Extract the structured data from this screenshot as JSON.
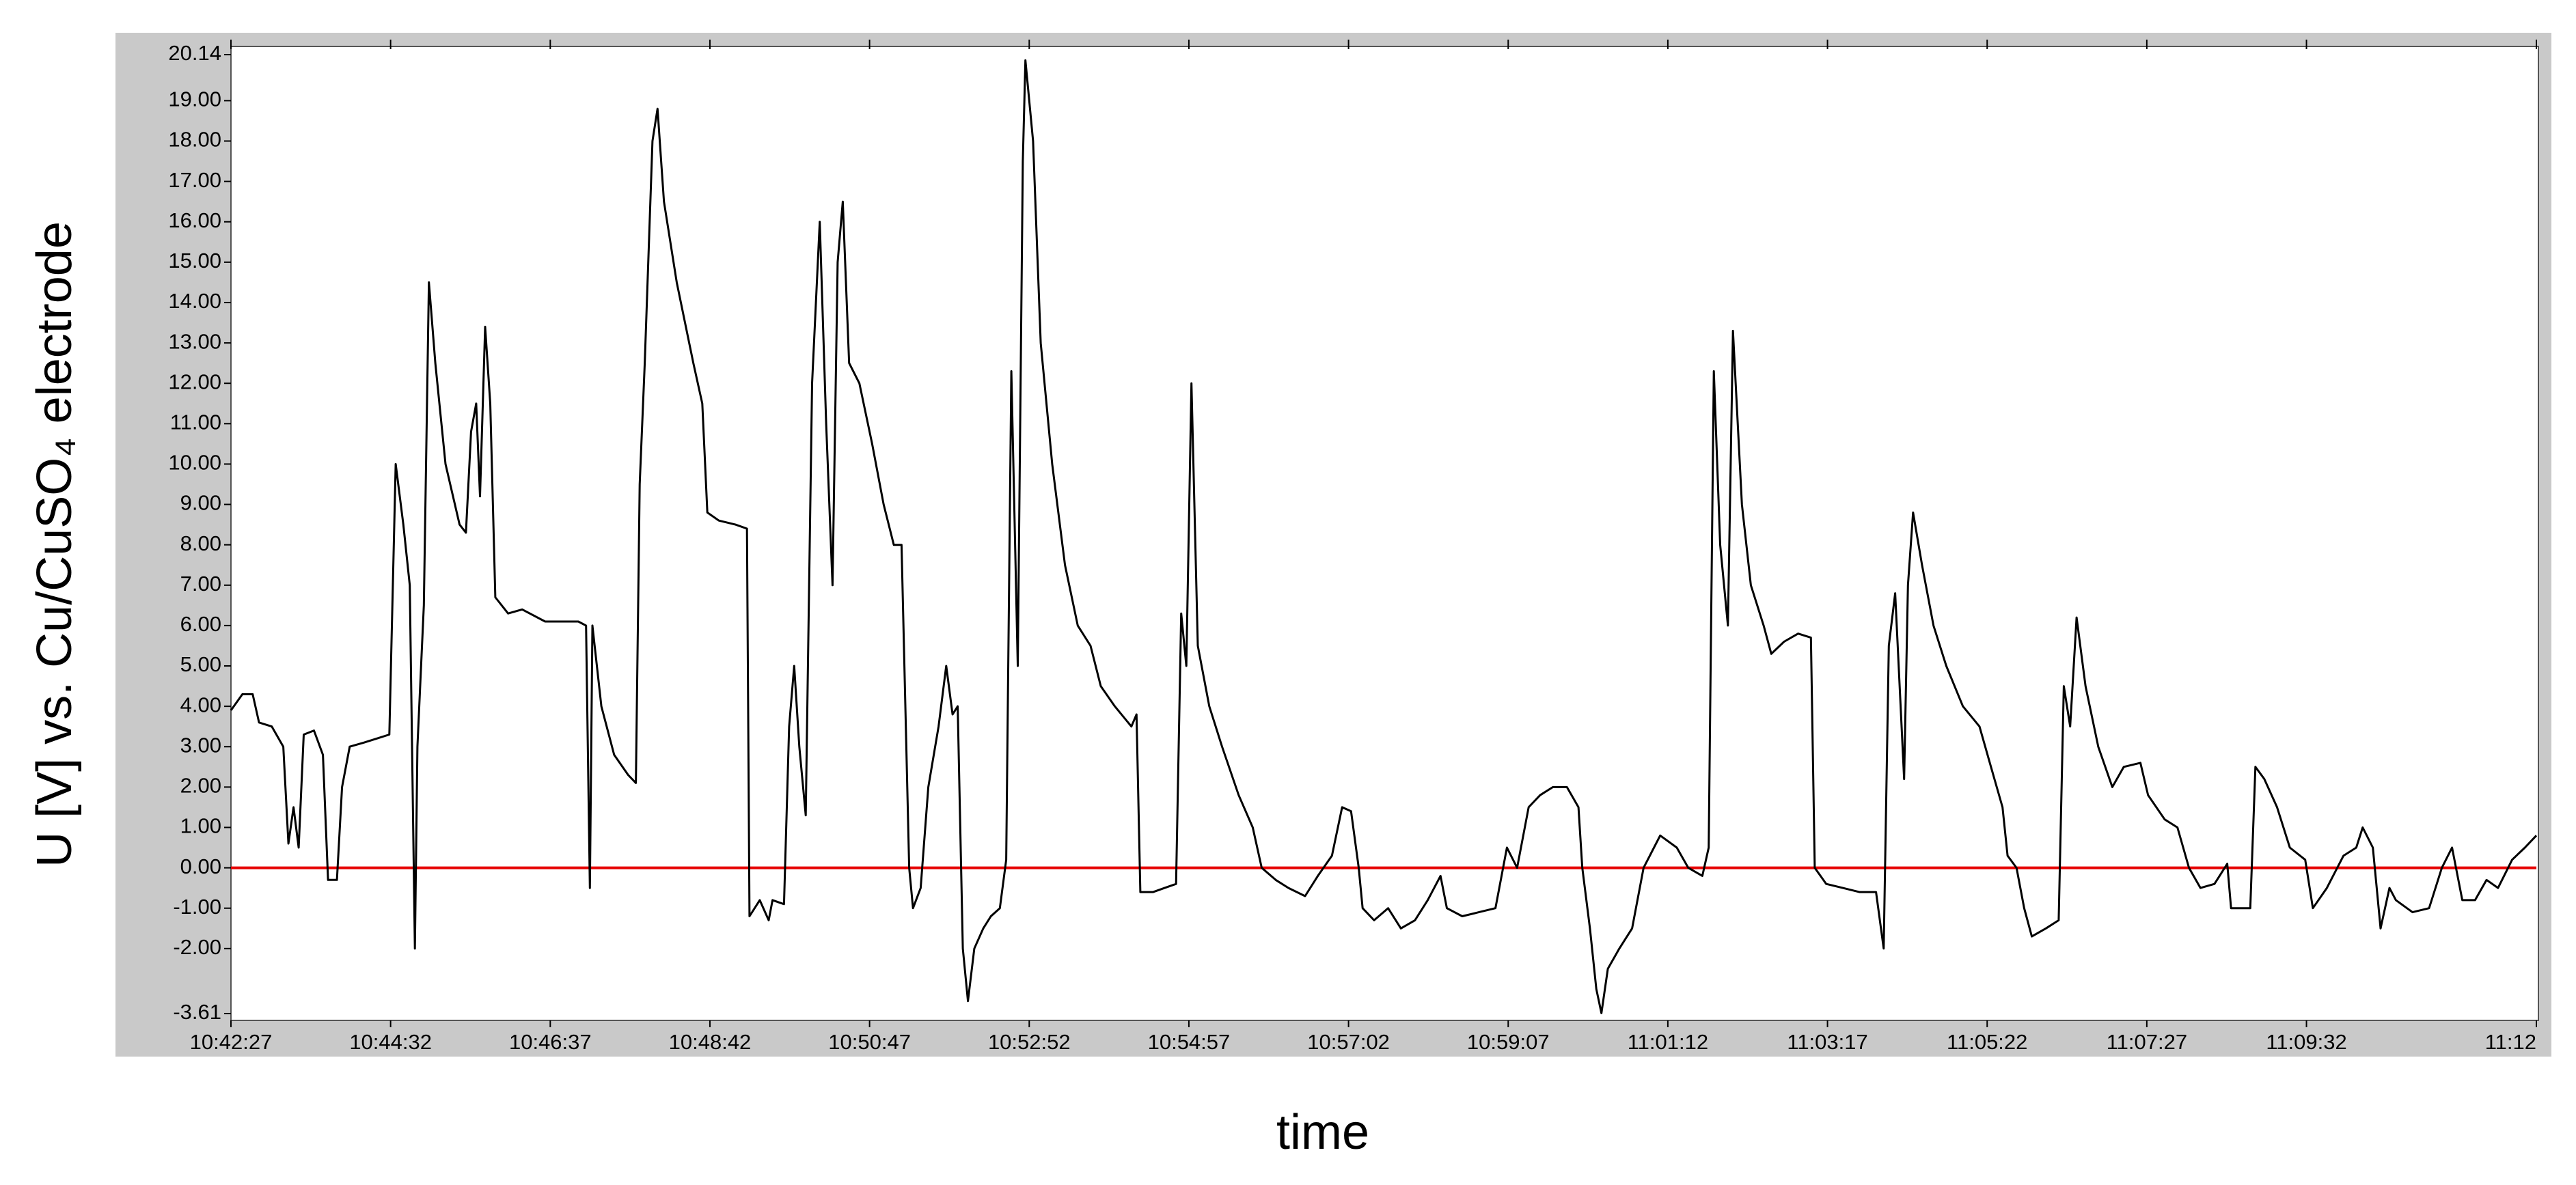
{
  "chart_data": {
    "type": "line",
    "y_label": "U [V] vs. Cu/CuSO₄ electrode",
    "x_label": "time",
    "xlim": [
      "10:42:27",
      "11:12:32"
    ],
    "xticks": [
      "10:42:27",
      "10:44:32",
      "10:46:37",
      "10:48:42",
      "10:50:47",
      "10:52:52",
      "10:54:57",
      "10:57:02",
      "10:59:07",
      "11:01:12",
      "11:03:17",
      "11:05:22",
      "11:07:27",
      "11:09:32",
      {
        "value": "11:12:32",
        "label": "11:12"
      }
    ],
    "ylim": [
      -3.61,
      20.14
    ],
    "yticks": [
      20.14,
      {
        "value": 19,
        "label": "19.00"
      },
      {
        "value": 18,
        "label": "18.00"
      },
      {
        "value": 17,
        "label": "17.00"
      },
      {
        "value": 16,
        "label": "16.00"
      },
      {
        "value": 15,
        "label": "15.00"
      },
      {
        "value": 14,
        "label": "14.00"
      },
      {
        "value": 13,
        "label": "13.00"
      },
      {
        "value": 12,
        "label": "12.00"
      },
      {
        "value": 11,
        "label": "11.00"
      },
      {
        "value": 10,
        "label": "10.00"
      },
      {
        "value": 9,
        "label": "9.00"
      },
      {
        "value": 8,
        "label": "8.00"
      },
      {
        "value": 7,
        "label": "7.00"
      },
      {
        "value": 6,
        "label": "6.00"
      },
      {
        "value": 5,
        "label": "5.00"
      },
      {
        "value": 4,
        "label": "4.00"
      },
      {
        "value": 3,
        "label": "3.00"
      },
      {
        "value": 2,
        "label": "2.00"
      },
      {
        "value": 1,
        "label": "1.00"
      },
      {
        "value": 0,
        "label": "0.00"
      },
      {
        "value": -1,
        "label": "-1.00"
      },
      {
        "value": -2,
        "label": "-2.00"
      },
      -3.61
    ],
    "reference_line": {
      "value": 0,
      "color": "#e60000"
    },
    "x": [
      "10:42:27",
      "10:42:36",
      "10:42:44",
      "10:42:49",
      "10:42:59",
      "10:43:08",
      "10:43:12",
      "10:43:16",
      "10:43:20",
      "10:43:24",
      "10:43:32",
      "10:43:39",
      "10:43:43",
      "10:43:50",
      "10:43:54",
      "10:44:00",
      "10:44:11",
      "10:44:21",
      "10:44:31",
      "10:44:36",
      "10:44:42",
      "10:44:47",
      "10:44:51",
      "10:44:53",
      "10:44:58",
      "10:45:02",
      "10:45:07",
      "10:45:15",
      "10:45:26",
      "10:45:31",
      "10:45:35",
      "10:45:39",
      "10:45:42",
      "10:45:46",
      "10:45:50",
      "10:45:54",
      "10:46:04",
      "10:46:15",
      "10:46:33",
      "10:46:59",
      "10:47:05",
      "10:47:08",
      "10:47:10",
      "10:47:17",
      "10:47:27",
      "10:47:38",
      "10:47:44",
      "10:47:47",
      "10:47:51",
      "10:47:57",
      "10:48:01",
      "10:48:06",
      "10:48:16",
      "10:48:29",
      "10:48:36",
      "10:48:40",
      "10:48:49",
      "10:49:02",
      "10:49:11",
      "10:49:13",
      "10:49:21",
      "10:49:28",
      "10:49:31",
      "10:49:40",
      "10:49:44",
      "10:49:48",
      "10:49:52",
      "10:49:57",
      "10:50:02",
      "10:50:08",
      "10:50:13",
      "10:50:18",
      "10:50:22",
      "10:50:26",
      "10:50:31",
      "10:50:39",
      "10:50:49",
      "10:50:58",
      "10:51:06",
      "10:51:12",
      "10:51:18",
      "10:51:21",
      "10:51:27",
      "10:51:33",
      "10:51:41",
      "10:51:47",
      "10:51:52",
      "10:51:56",
      "10:52:00",
      "10:52:04",
      "10:52:09",
      "10:52:16",
      "10:52:22",
      "10:52:29",
      "10:52:34",
      "10:52:38",
      "10:52:43",
      "10:52:47",
      "10:52:49",
      "10:52:55",
      "10:53:01",
      "10:53:10",
      "10:53:20",
      "10:53:30",
      "10:53:40",
      "10:53:48",
      "10:53:59",
      "10:54:12",
      "10:54:16",
      "10:54:19",
      "10:54:29",
      "10:54:38",
      "10:54:47",
      "10:54:51",
      "10:54:55",
      "10:54:59",
      "10:55:04",
      "10:55:13",
      "10:55:23",
      "10:55:36",
      "10:55:47",
      "10:55:54",
      "10:56:05",
      "10:56:15",
      "10:56:28",
      "10:56:38",
      "10:56:49",
      "10:56:57",
      "10:57:04",
      "10:57:10",
      "10:57:13",
      "10:57:22",
      "10:57:33",
      "10:57:43",
      "10:57:54",
      "10:58:04",
      "10:58:14",
      "10:58:19",
      "10:58:31",
      "10:58:44",
      "10:58:57",
      "10:59:06",
      "10:59:14",
      "10:59:23",
      "10:59:32",
      "10:59:42",
      "10:59:53",
      "11:00:02",
      "11:00:05",
      "11:00:11",
      "11:00:16",
      "11:00:20",
      "11:00:25",
      "11:00:34",
      "11:00:44",
      "11:00:53",
      "11:01:06",
      "11:01:19",
      "11:01:28",
      "11:01:39",
      "11:01:44",
      "11:01:48",
      "11:01:53",
      "11:01:59",
      "11:02:03",
      "11:02:10",
      "11:02:17",
      "11:02:27",
      "11:02:33",
      "11:02:43",
      "11:02:54",
      "11:03:04",
      "11:03:07",
      "11:03:16",
      "11:03:29",
      "11:03:42",
      "11:03:55",
      "11:04:01",
      "11:04:05",
      "11:04:10",
      "11:04:17",
      "11:04:20",
      "11:04:24",
      "11:04:31",
      "11:04:40",
      "11:04:50",
      "11:05:03",
      "11:05:16",
      "11:05:25",
      "11:05:34",
      "11:05:38",
      "11:05:45",
      "11:05:51",
      "11:05:57",
      "11:06:08",
      "11:06:18",
      "11:06:22",
      "11:06:27",
      "11:06:32",
      "11:06:39",
      "11:06:49",
      "11:07:00",
      "11:07:09",
      "11:07:22",
      "11:07:28",
      "11:07:41",
      "11:07:51",
      "11:08:00",
      "11:08:09",
      "11:08:20",
      "11:08:30",
      "11:08:33",
      "11:08:48",
      "11:08:52",
      "11:08:59",
      "11:09:09",
      "11:09:19",
      "11:09:31",
      "11:09:37",
      "11:09:48",
      "11:10:01",
      "11:10:11",
      "11:10:16",
      "11:10:24",
      "11:10:30",
      "11:10:37",
      "11:10:42",
      "11:10:55",
      "11:11:08",
      "11:11:18",
      "11:11:26",
      "11:11:34",
      "11:11:44",
      "11:11:53",
      "11:12:02",
      "11:12:13",
      "11:12:23",
      "11:12:32"
    ],
    "series": [
      {
        "color": "#000000",
        "values": [
          3.9,
          4.3,
          4.3,
          3.6,
          3.5,
          3.0,
          0.6,
          1.5,
          0.5,
          3.3,
          3.4,
          2.8,
          -0.3,
          -0.3,
          2.0,
          3.0,
          3.1,
          3.2,
          3.3,
          10.0,
          8.5,
          7.0,
          -2.0,
          3.0,
          6.5,
          14.5,
          12.5,
          10.0,
          8.5,
          8.3,
          10.8,
          11.5,
          9.2,
          13.4,
          11.5,
          6.7,
          6.3,
          6.4,
          6.1,
          6.1,
          6.0,
          -0.5,
          6.0,
          4.0,
          2.8,
          2.3,
          2.1,
          9.5,
          12.5,
          18.0,
          18.8,
          16.5,
          14.5,
          12.5,
          11.5,
          8.8,
          8.6,
          8.5,
          8.4,
          -1.2,
          -0.8,
          -1.3,
          -0.8,
          -0.9,
          3.5,
          5.0,
          3.0,
          1.3,
          12.0,
          16.0,
          11.0,
          7.0,
          15.0,
          16.5,
          12.5,
          12.0,
          10.5,
          9.0,
          8.0,
          8.0,
          0.0,
          -1.0,
          -0.5,
          2.0,
          3.5,
          5.0,
          3.8,
          4.0,
          -2.0,
          -3.3,
          -2.0,
          -1.5,
          -1.2,
          -1.0,
          0.2,
          12.3,
          5.0,
          17.5,
          20.0,
          18.0,
          13.0,
          10.0,
          7.5,
          6.0,
          5.5,
          4.5,
          4.0,
          3.5,
          3.8,
          -0.6,
          -0.6,
          -0.5,
          -0.4,
          6.3,
          5.0,
          12.0,
          5.5,
          4.0,
          3.0,
          1.8,
          1.0,
          0.0,
          -0.3,
          -0.5,
          -0.7,
          -0.2,
          0.3,
          1.5,
          1.4,
          0.0,
          -1.0,
          -1.3,
          -1.0,
          -1.5,
          -1.3,
          -0.8,
          -0.2,
          -1.0,
          -1.2,
          -1.1,
          -1.0,
          0.5,
          0.0,
          1.5,
          1.8,
          2.0,
          2.0,
          1.5,
          0.0,
          -1.5,
          -3.0,
          -3.6,
          -2.5,
          -2.0,
          -1.5,
          0.0,
          0.8,
          0.5,
          0.0,
          -0.2,
          0.5,
          12.3,
          8.0,
          6.0,
          13.3,
          9.0,
          7.0,
          6.0,
          5.3,
          5.6,
          5.8,
          5.7,
          0.0,
          -0.4,
          -0.5,
          -0.6,
          -0.6,
          -2.0,
          5.5,
          6.8,
          2.2,
          7.0,
          8.8,
          7.5,
          6.0,
          5.0,
          4.0,
          3.5,
          2.5,
          1.5,
          0.3,
          0.0,
          -1.0,
          -1.7,
          -1.5,
          -1.3,
          4.5,
          3.5,
          6.2,
          4.5,
          3.0,
          2.0,
          2.5,
          2.6,
          1.8,
          1.2,
          1.0,
          0.0,
          -0.5,
          -0.4,
          0.1,
          -1.0,
          -1.0,
          2.5,
          2.2,
          1.5,
          0.5,
          0.2,
          -1.0,
          -0.5,
          0.3,
          0.5,
          1.0,
          0.5,
          -1.5,
          -0.5,
          -0.8,
          -1.1,
          -1.0,
          0.0,
          0.5,
          -0.8,
          -0.8,
          -0.3,
          -0.5,
          0.2,
          0.5,
          0.8
        ]
      }
    ]
  }
}
